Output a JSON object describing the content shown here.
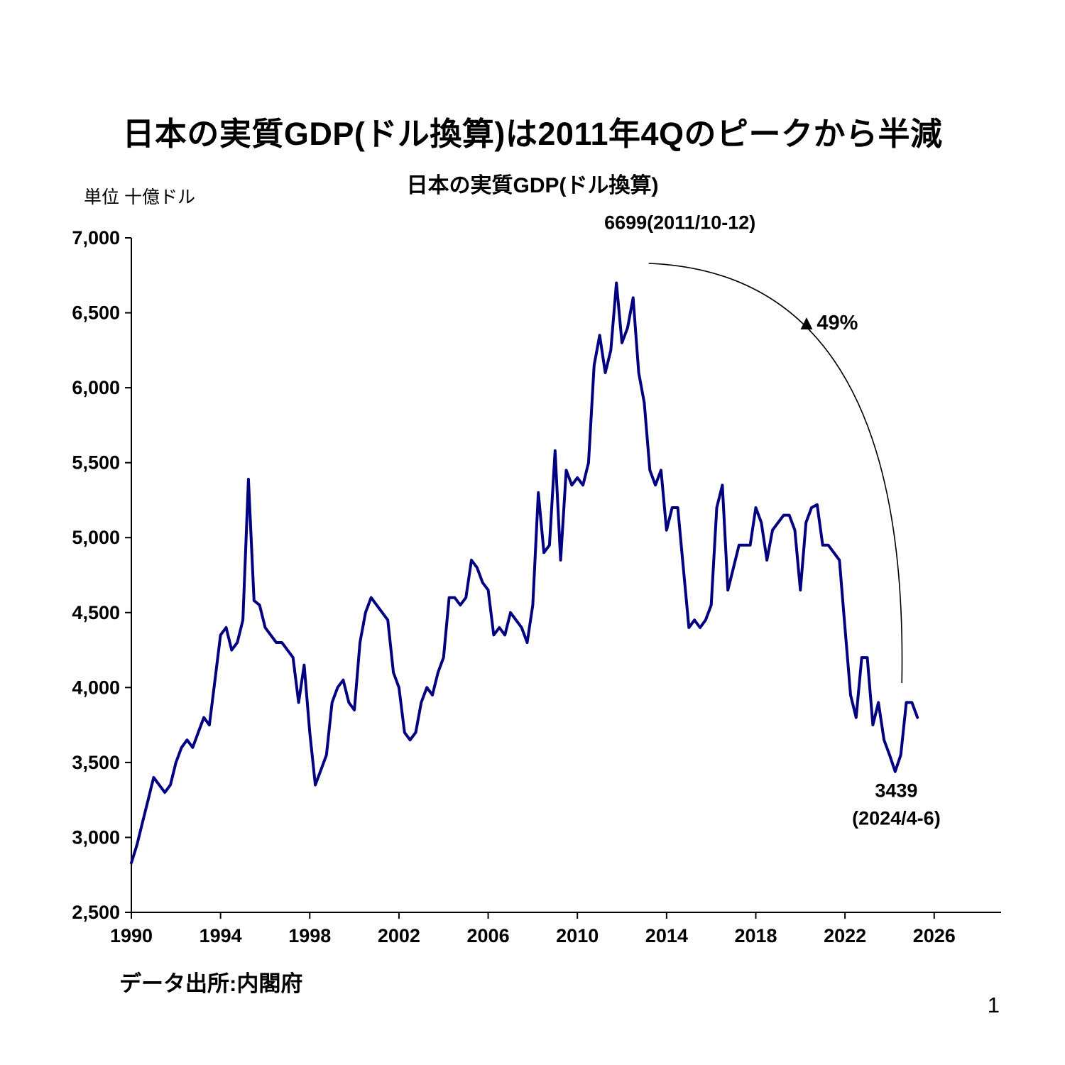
{
  "page": {
    "number": "1"
  },
  "header": {
    "title": "日本の実質GDP(ドル換算)は2011年4Qのピークから半減"
  },
  "chart_data": {
    "type": "line",
    "title": "日本の実質GDP(ドル換算)",
    "unit_label": "単位 十億ドル",
    "source": "データ出所:内閣府",
    "xlabel": "",
    "ylabel": "十億ドル",
    "ylim": [
      2500,
      7000
    ],
    "ytick_step": 500,
    "xlim": [
      1990,
      2029
    ],
    "xticks": [
      1990,
      1994,
      1998,
      2002,
      2006,
      2010,
      2014,
      2018,
      2022,
      2026
    ],
    "grid": false,
    "legend": "none",
    "line_color": "#000080",
    "series": [
      {
        "name": "日本の実質GDP(ドル換算)",
        "start_year": 1990,
        "period_years": 0.25,
        "values": [
          2830,
          2950,
          3100,
          3250,
          3400,
          3350,
          3300,
          3350,
          3500,
          3600,
          3650,
          3600,
          3700,
          3800,
          3750,
          4050,
          4350,
          4400,
          4250,
          4300,
          4450,
          5390,
          4580,
          4550,
          4400,
          4350,
          4300,
          4300,
          4250,
          4200,
          3900,
          4150,
          3700,
          3350,
          3450,
          3550,
          3900,
          4000,
          4050,
          3900,
          3850,
          4300,
          4500,
          4600,
          4550,
          4500,
          4450,
          4100,
          4000,
          3700,
          3650,
          3700,
          3900,
          4000,
          3950,
          4100,
          4200,
          4600,
          4600,
          4550,
          4600,
          4850,
          4800,
          4700,
          4650,
          4350,
          4400,
          4350,
          4500,
          4450,
          4400,
          4300,
          4550,
          5300,
          4900,
          4950,
          5580,
          4850,
          5450,
          5350,
          5400,
          5350,
          5500,
          6150,
          6350,
          6100,
          6250,
          6699,
          6300,
          6400,
          6600,
          6100,
          5900,
          5450,
          5350,
          5450,
          5050,
          5200,
          5200,
          4800,
          4400,
          4450,
          4400,
          4450,
          4550,
          5200,
          5350,
          4650,
          4800,
          4950,
          4950,
          4950,
          5200,
          5100,
          4850,
          5050,
          5100,
          5150,
          5150,
          5050,
          4650,
          5100,
          5200,
          5220,
          4950,
          4950,
          4900,
          4850,
          4400,
          3950,
          3800,
          4200,
          4200,
          3750,
          3900,
          3650,
          3550,
          3439,
          3550,
          3900,
          3900,
          3800
        ]
      }
    ],
    "annotations": {
      "peak_value": 6699,
      "peak_period": "2011/10-12",
      "trough_value": 3439,
      "trough_period": "2024/4-6",
      "decline_pct": "▲49%",
      "labels": [
        {
          "role": "peak-label",
          "text": "6699(2011/10-12)",
          "x": 2014.6,
          "y": 7060,
          "color": "#000000"
        },
        {
          "role": "drop-pct-label",
          "text": "▲49%",
          "x": 2021.2,
          "y": 6390,
          "color": "#ff0000"
        },
        {
          "role": "trough-value-label",
          "text": "3439",
          "x": 2024.3,
          "y": 3270,
          "color": "#000000"
        },
        {
          "role": "trough-date-label",
          "text": "(2024/4-6)",
          "x": 2024.3,
          "y": 3085,
          "color": "#000000"
        }
      ],
      "arc": {
        "from": [
          2013.2,
          6830
        ],
        "ctrl": [
          2024.9,
          6760
        ],
        "to": [
          2024.55,
          4030
        ],
        "color": "#000000"
      }
    }
  }
}
